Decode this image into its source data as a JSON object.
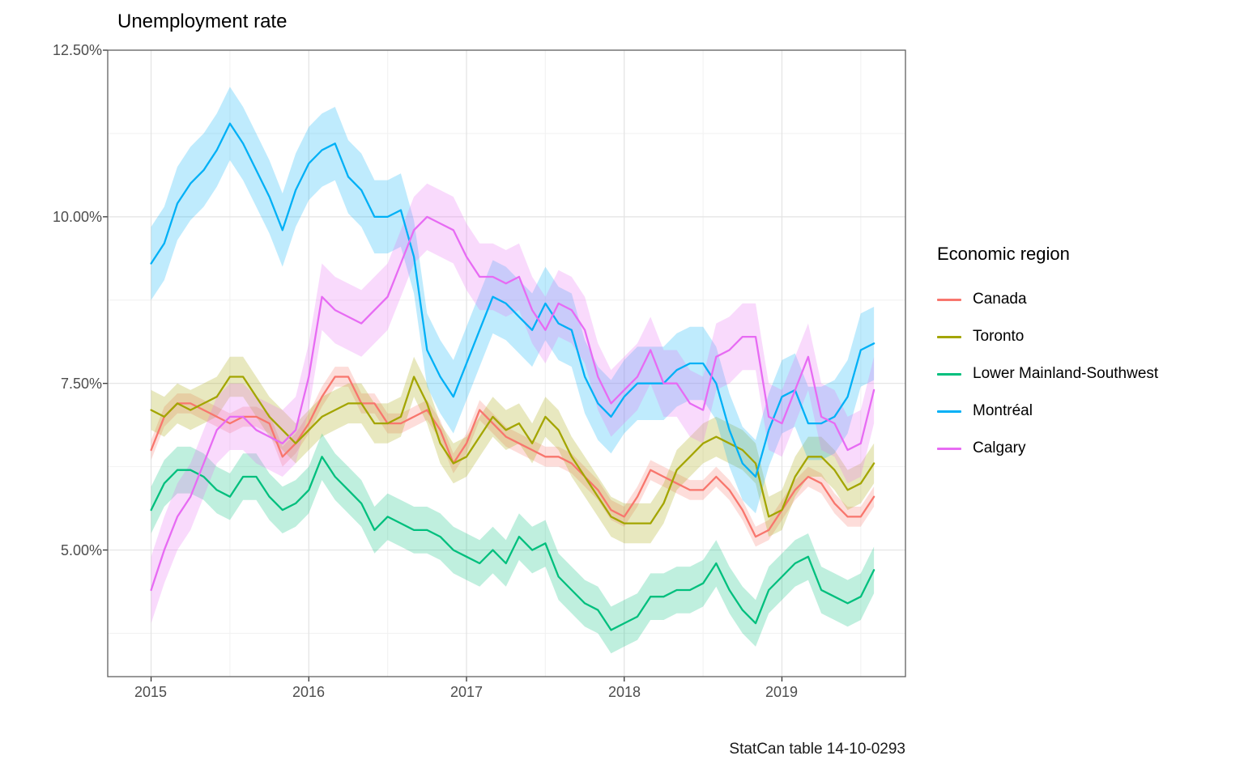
{
  "title": "Unemployment rate",
  "caption": "StatCan table 14-10-0293",
  "legend": {
    "title": "Economic region"
  },
  "chart_data": {
    "type": "line",
    "title": "Unemployment rate",
    "xlabel": "",
    "ylabel": "",
    "x_unit": "month",
    "x_start": "2015-01",
    "x_frequency": "monthly",
    "x_tick_labels": [
      "2015",
      "2016",
      "2017",
      "2018",
      "2019"
    ],
    "x_grid_major_months": [
      0,
      12,
      24,
      36,
      48
    ],
    "x_grid_minor_months": [
      6,
      18,
      30,
      42,
      54
    ],
    "xlim_months": [
      -3.3,
      57.4
    ],
    "y_tick_labels": [
      "12.50%",
      "10.00%",
      "7.50%",
      "5.00%"
    ],
    "y_tick_values": [
      12.5,
      10.0,
      7.5,
      5.0
    ],
    "y_grid_major": [
      5.0,
      7.5,
      10.0,
      12.5
    ],
    "y_grid_minor": [
      3.75,
      6.25,
      8.75,
      11.25
    ],
    "ylim": [
      3.1,
      12.5
    ],
    "grid": true,
    "legend_position": "right",
    "ribbon": "confidence band around each line, same hue at low opacity",
    "series": [
      {
        "name": "Canada",
        "color": "#F8766D",
        "band_halfwidth": 0.15,
        "values": [
          6.5,
          7.0,
          7.2,
          7.2,
          7.1,
          7.0,
          6.9,
          7.0,
          7.0,
          6.9,
          6.4,
          6.6,
          6.9,
          7.3,
          7.6,
          7.6,
          7.2,
          7.2,
          6.9,
          6.9,
          7.0,
          7.1,
          6.8,
          6.3,
          6.6,
          7.1,
          6.9,
          6.7,
          6.6,
          6.5,
          6.4,
          6.4,
          6.3,
          6.1,
          5.9,
          5.6,
          5.5,
          5.8,
          6.2,
          6.1,
          6.0,
          5.9,
          5.9,
          6.1,
          5.9,
          5.6,
          5.2,
          5.3,
          5.6,
          5.9,
          6.1,
          6.0,
          5.7,
          5.5,
          5.5,
          5.8
        ]
      },
      {
        "name": "Toronto",
        "color": "#A3A500",
        "band_halfwidth": 0.3,
        "values": [
          7.1,
          7.0,
          7.2,
          7.1,
          7.2,
          7.3,
          7.6,
          7.6,
          7.3,
          7.0,
          6.8,
          6.6,
          6.8,
          7.0,
          7.1,
          7.2,
          7.2,
          6.9,
          6.9,
          7.0,
          7.6,
          7.2,
          6.6,
          6.3,
          6.4,
          6.7,
          7.0,
          6.8,
          6.9,
          6.6,
          7.0,
          6.8,
          6.4,
          6.1,
          5.8,
          5.5,
          5.4,
          5.4,
          5.4,
          5.7,
          6.2,
          6.4,
          6.6,
          6.7,
          6.6,
          6.5,
          6.3,
          5.5,
          5.6,
          6.1,
          6.4,
          6.4,
          6.2,
          5.9,
          6.0,
          6.3
        ]
      },
      {
        "name": "Lower Mainland-Southwest",
        "color": "#00BF7D",
        "band_halfwidth": 0.35,
        "values": [
          5.6,
          6.0,
          6.2,
          6.2,
          6.1,
          5.9,
          5.8,
          6.1,
          6.1,
          5.8,
          5.6,
          5.7,
          5.9,
          6.4,
          6.1,
          5.9,
          5.7,
          5.3,
          5.5,
          5.4,
          5.3,
          5.3,
          5.2,
          5.0,
          4.9,
          4.8,
          5.0,
          4.8,
          5.2,
          5.0,
          5.1,
          4.6,
          4.4,
          4.2,
          4.1,
          3.8,
          3.9,
          4.0,
          4.3,
          4.3,
          4.4,
          4.4,
          4.5,
          4.8,
          4.4,
          4.1,
          3.9,
          4.4,
          4.6,
          4.8,
          4.9,
          4.4,
          4.3,
          4.2,
          4.3,
          4.7
        ]
      },
      {
        "name": "Montréal",
        "color": "#00B0F6",
        "band_halfwidth": 0.55,
        "values": [
          9.3,
          9.6,
          10.2,
          10.5,
          10.7,
          11.0,
          11.4,
          11.1,
          10.7,
          10.3,
          9.8,
          10.4,
          10.8,
          11.0,
          11.1,
          10.6,
          10.4,
          10.0,
          10.0,
          10.1,
          9.4,
          8.0,
          7.6,
          7.3,
          7.8,
          8.3,
          8.8,
          8.7,
          8.5,
          8.3,
          8.7,
          8.4,
          8.3,
          7.6,
          7.2,
          7.0,
          7.3,
          7.5,
          7.5,
          7.5,
          7.7,
          7.8,
          7.8,
          7.5,
          6.8,
          6.3,
          6.1,
          6.8,
          7.3,
          7.4,
          6.9,
          6.9,
          7.0,
          7.3,
          8.0,
          8.1
        ]
      },
      {
        "name": "Calgary",
        "color": "#E76BF3",
        "band_halfwidth": 0.5,
        "values": [
          4.4,
          5.0,
          5.5,
          5.8,
          6.3,
          6.8,
          7.0,
          7.0,
          6.8,
          6.7,
          6.6,
          6.8,
          7.6,
          8.8,
          8.6,
          8.5,
          8.4,
          8.6,
          8.8,
          9.3,
          9.8,
          10.0,
          9.9,
          9.8,
          9.4,
          9.1,
          9.1,
          9.0,
          9.1,
          8.6,
          8.3,
          8.7,
          8.6,
          8.3,
          7.6,
          7.2,
          7.4,
          7.6,
          8.0,
          7.5,
          7.5,
          7.2,
          7.1,
          7.9,
          8.0,
          8.2,
          8.2,
          7.0,
          6.9,
          7.4,
          7.9,
          7.0,
          6.9,
          6.5,
          6.6,
          7.4
        ]
      }
    ]
  }
}
